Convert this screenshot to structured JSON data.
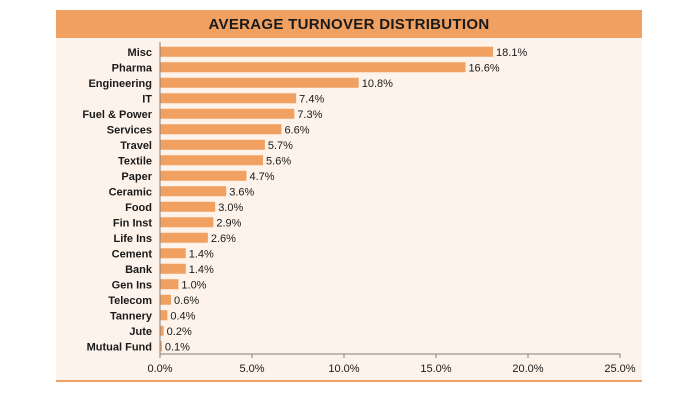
{
  "chart_data": {
    "type": "bar",
    "orientation": "horizontal",
    "title": "AVERAGE TURNOVER DISTRIBUTION",
    "categories": [
      "Misc",
      "Pharma",
      "Engineering",
      "IT",
      "Fuel & Power",
      "Services",
      "Travel",
      "Textile",
      "Paper",
      "Ceramic",
      "Food",
      "Fin Inst",
      "Life Ins",
      "Cement",
      "Bank",
      "Gen Ins",
      "Telecom",
      "Tannery",
      "Jute",
      "Mutual Fund"
    ],
    "values": [
      18.1,
      16.6,
      10.8,
      7.4,
      7.3,
      6.6,
      5.7,
      5.6,
      4.7,
      3.6,
      3.0,
      2.9,
      2.6,
      1.4,
      1.4,
      1.0,
      0.6,
      0.4,
      0.2,
      0.1
    ],
    "value_labels": [
      "18.1%",
      "16.6%",
      "10.8%",
      "7.4%",
      "7.3%",
      "6.6%",
      "5.7%",
      "5.6%",
      "4.7%",
      "3.6%",
      "3.0%",
      "2.9%",
      "2.6%",
      "1.4%",
      "1.4%",
      "1.0%",
      "0.6%",
      "0.4%",
      "0.2%",
      "0.1%"
    ],
    "xlim": [
      0,
      25
    ],
    "x_ticks": [
      0,
      5,
      10,
      15,
      20,
      25
    ],
    "x_tick_labels": [
      "0.0%",
      "5.0%",
      "10.0%",
      "15.0%",
      "20.0%",
      "25.0%"
    ],
    "grid": false,
    "legend": "none",
    "colors": {
      "bar": "#f0a060",
      "title_bar": "#f0a060",
      "background": "#fdf3ea",
      "axis": "#7f7f7f"
    }
  }
}
